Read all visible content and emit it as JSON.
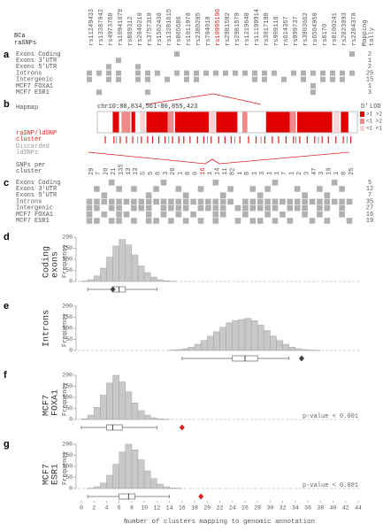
{
  "header": {
    "title_lines": [
      "BCa",
      "raSNPs"
    ],
    "tally_label_lines": [
      "Mapping",
      "tally"
    ],
    "rsids": [
      "rs11249433",
      "rs13387042",
      "rs4973768",
      "rs10941679",
      "rs889312",
      "rs2046210",
      "rs3757318",
      "rs1562430",
      "rs13281615",
      "rs865686",
      "rs1011970",
      "rs2380205",
      "rs704010",
      "rs10995190",
      "rs2981582",
      "rs2981579",
      "rs1219648",
      "rs11199914",
      "rs3817198",
      "rs909116",
      "rs614367",
      "rs999737",
      "rs3803662",
      "rs6504950",
      "rs8170",
      "rs8100241",
      "rs2823093",
      "rs2284378"
    ],
    "highlight_index": 13,
    "highlight_color": "#e02020"
  },
  "panel_labels": [
    "a",
    "b",
    "c",
    "d",
    "e",
    "f",
    "g"
  ],
  "panel_a": {
    "cell_color": "#b0b0b0",
    "rows": [
      {
        "label": "Exons Coding",
        "tally": 2,
        "cells": [
          0,
          0,
          0,
          0,
          0,
          0,
          0,
          0,
          0,
          1,
          0,
          0,
          0,
          0,
          0,
          0,
          0,
          0,
          0,
          0,
          0,
          0,
          0,
          0,
          0,
          0,
          0,
          1
        ]
      },
      {
        "label": "Exons 3'UTR",
        "tally": 1,
        "cells": [
          0,
          0,
          0,
          1,
          0,
          0,
          0,
          0,
          0,
          0,
          0,
          0,
          0,
          0,
          0,
          0,
          0,
          0,
          0,
          0,
          0,
          0,
          0,
          0,
          0,
          0,
          0,
          0
        ]
      },
      {
        "label": "Exons 5'UTR",
        "tally": 2,
        "cells": [
          0,
          0,
          1,
          0,
          0,
          1,
          0,
          0,
          0,
          0,
          0,
          0,
          0,
          0,
          0,
          0,
          0,
          0,
          0,
          0,
          0,
          0,
          0,
          0,
          0,
          0,
          0,
          0
        ]
      },
      {
        "label": "Introns",
        "tally": 25,
        "cells": [
          1,
          1,
          1,
          1,
          0,
          1,
          1,
          1,
          0,
          1,
          1,
          1,
          1,
          1,
          1,
          1,
          1,
          1,
          1,
          1,
          0,
          1,
          1,
          1,
          1,
          1,
          1,
          1
        ]
      },
      {
        "label": "Intergenic",
        "tally": 15,
        "cells": [
          1,
          0,
          1,
          1,
          0,
          1,
          1,
          0,
          1,
          0,
          1,
          1,
          0,
          0,
          0,
          0,
          0,
          1,
          1,
          0,
          1,
          0,
          1,
          0,
          1,
          1,
          1,
          0
        ]
      },
      {
        "label": "MCF7 FOXA1",
        "tally": 1,
        "cells": [
          0,
          0,
          0,
          0,
          0,
          0,
          0,
          0,
          0,
          0,
          0,
          0,
          0,
          0,
          0,
          0,
          0,
          0,
          0,
          0,
          0,
          0,
          0,
          1,
          0,
          0,
          0,
          0
        ]
      },
      {
        "label": "MCF7 ESR1",
        "tally": 3,
        "cells": [
          0,
          1,
          0,
          0,
          0,
          0,
          1,
          0,
          0,
          0,
          0,
          0,
          0,
          0,
          0,
          0,
          0,
          0,
          0,
          0,
          0,
          0,
          0,
          1,
          0,
          0,
          0,
          0
        ]
      }
    ]
  },
  "panel_b": {
    "label": "Hapmap",
    "region": "chr10:80,834,561-80,855,423",
    "range": [
      80834561,
      80855423
    ],
    "cluster_label_lines": [
      "raSNP/ldSNP",
      "cluster"
    ],
    "discarded_label_lines": [
      "Discarded",
      "ldSNPs"
    ],
    "cluster_color": "#e02020",
    "discarded_color": "#999999",
    "legend_header": [
      "D'",
      "LOD"
    ],
    "legend": [
      {
        "label": ">1 >2",
        "color": "#e00000"
      },
      {
        "label": "<1 >2",
        "color": "#f08a8a"
      },
      {
        "label": "<1 <1",
        "color": "#fad4d4"
      }
    ],
    "ld_blocks": [
      [
        80835800,
        80836300,
        0
      ],
      [
        80836500,
        80837200,
        1
      ],
      [
        80837300,
        80837600,
        0
      ],
      [
        80838000,
        80838400,
        2
      ],
      [
        80838500,
        80840200,
        0
      ],
      [
        80840200,
        80840700,
        1
      ],
      [
        80840800,
        80843500,
        0
      ],
      [
        80843500,
        80844000,
        2
      ],
      [
        80844100,
        80845800,
        0
      ],
      [
        80846200,
        80846600,
        1
      ],
      [
        80848100,
        80850000,
        0
      ],
      [
        80850000,
        80850500,
        1
      ],
      [
        80850600,
        80853400,
        0
      ],
      [
        80853500,
        80854000,
        2
      ],
      [
        80854100,
        80854700,
        0
      ]
    ],
    "clusters": [
      80835200,
      80835900,
      80836400,
      80836900,
      80837400,
      80838100,
      80838600,
      80839000,
      80839500,
      80840000,
      80840600,
      80841100,
      80841500,
      80842000,
      80842600,
      80843100,
      80843700,
      80844300,
      80844800,
      80845300,
      80846000,
      80846700,
      80847300,
      80848000,
      80848600,
      80849100,
      80849700,
      80850300,
      80850800,
      80851400,
      80852000,
      80852600,
      80853100,
      80853700,
      80854300,
      80854900
    ],
    "discarded": [
      80836100,
      80837800,
      80840300,
      80843400,
      80845600,
      80847700,
      80850500,
      80852300,
      80854600
    ]
  },
  "panel_c": {
    "snps_label_lines": [
      "SNPs per",
      "cluster"
    ],
    "highlight_index": 15,
    "snps_per_cluster": [
      29,
      7,
      26,
      21,
      135,
      13,
      13,
      5,
      5,
      8,
      3,
      28,
      1,
      8,
      6,
      16,
      1,
      14,
      11,
      82,
      1,
      8,
      1,
      3,
      1,
      1,
      7,
      1,
      2,
      3,
      47,
      3,
      10,
      1,
      8,
      25
    ],
    "rows": [
      {
        "label": "Exons Coding",
        "tally": 5,
        "cells": [
          0,
          0,
          0,
          1,
          0,
          0,
          0,
          0,
          0,
          0,
          1,
          0,
          0,
          0,
          0,
          0,
          0,
          1,
          0,
          0,
          0,
          0,
          0,
          0,
          0,
          1,
          0,
          0,
          0,
          0,
          0,
          0,
          0,
          1,
          0,
          0
        ]
      },
      {
        "label": "Exons 3'UTR",
        "tally": 12,
        "cells": [
          0,
          1,
          0,
          0,
          1,
          0,
          1,
          0,
          0,
          1,
          0,
          0,
          1,
          0,
          0,
          1,
          0,
          0,
          0,
          1,
          0,
          0,
          1,
          0,
          1,
          0,
          0,
          0,
          1,
          0,
          0,
          1,
          0,
          0,
          1,
          0
        ]
      },
      {
        "label": "Exons 5'UTR",
        "tally": 7,
        "cells": [
          0,
          0,
          1,
          0,
          0,
          0,
          0,
          0,
          1,
          0,
          0,
          0,
          0,
          1,
          0,
          0,
          0,
          0,
          1,
          0,
          0,
          0,
          0,
          1,
          0,
          0,
          0,
          0,
          0,
          1,
          0,
          0,
          1,
          0,
          0,
          0
        ]
      },
      {
        "label": "Introns",
        "tally": 35,
        "cells": [
          1,
          1,
          1,
          1,
          1,
          1,
          1,
          1,
          1,
          1,
          1,
          1,
          1,
          1,
          1,
          1,
          1,
          1,
          1,
          1,
          0,
          1,
          1,
          1,
          1,
          1,
          1,
          1,
          1,
          1,
          1,
          1,
          1,
          1,
          1,
          1
        ]
      },
      {
        "label": "Intergenic",
        "tally": 27,
        "cells": [
          1,
          1,
          0,
          1,
          1,
          0,
          1,
          1,
          1,
          0,
          1,
          1,
          1,
          1,
          0,
          1,
          1,
          1,
          1,
          0,
          1,
          1,
          1,
          1,
          1,
          1,
          0,
          1,
          1,
          1,
          0,
          1,
          1,
          0,
          1,
          0
        ]
      },
      {
        "label": "MCF7 FOXA1",
        "tally": 16,
        "cells": [
          1,
          0,
          1,
          0,
          1,
          1,
          0,
          0,
          1,
          0,
          1,
          0,
          1,
          0,
          1,
          0,
          0,
          1,
          1,
          0,
          0,
          1,
          0,
          0,
          1,
          0,
          1,
          0,
          0,
          1,
          0,
          1,
          0,
          0,
          1,
          0
        ]
      },
      {
        "label": "MCF7 ESR1",
        "tally": 19,
        "cells": [
          1,
          1,
          0,
          1,
          1,
          0,
          1,
          0,
          1,
          1,
          0,
          1,
          0,
          1,
          0,
          1,
          0,
          1,
          0,
          0,
          1,
          0,
          1,
          1,
          0,
          1,
          0,
          1,
          0,
          0,
          1,
          0,
          1,
          0,
          0,
          1
        ]
      }
    ]
  },
  "chart_data": [
    {
      "type": "histogram",
      "label_lines": [
        "Coding",
        "exons"
      ],
      "ylabel": "Frequency",
      "color": "#c8c8c8",
      "xlim": [
        0,
        44
      ],
      "ylim": [
        0,
        200
      ],
      "yticks": [
        0,
        50,
        100,
        150,
        200
      ],
      "bins": [
        0,
        1,
        2,
        3,
        4,
        5,
        6,
        7,
        8,
        9,
        10,
        11,
        12,
        13,
        14,
        15,
        16,
        17,
        18,
        19,
        20,
        21,
        22,
        23,
        24,
        25,
        26,
        27,
        28,
        29,
        30,
        31,
        32,
        33,
        34,
        35,
        36,
        37,
        38,
        39,
        40,
        41,
        42,
        43,
        44
      ],
      "counts": [
        2,
        8,
        25,
        60,
        110,
        160,
        190,
        165,
        120,
        70,
        40,
        20,
        8,
        3,
        1,
        0,
        0,
        0,
        0,
        0,
        0,
        0,
        0,
        0,
        0,
        0,
        0,
        0,
        0,
        0,
        0,
        0,
        0,
        0,
        0,
        0,
        0,
        0,
        0,
        0,
        0,
        0,
        0,
        0
      ],
      "box": {
        "whisker_low": 1,
        "q1": 5,
        "median": 6,
        "q3": 7,
        "whisker_high": 12
      },
      "observed": 5,
      "observed_color": "#444444"
    },
    {
      "type": "histogram",
      "label_lines": [
        "Introns"
      ],
      "ylabel": "Frequency",
      "color": "#c8c8c8",
      "xlim": [
        0,
        44
      ],
      "ylim": [
        0,
        200
      ],
      "yticks": [
        0,
        50,
        100,
        150,
        200
      ],
      "bins": [
        0,
        1,
        2,
        3,
        4,
        5,
        6,
        7,
        8,
        9,
        10,
        11,
        12,
        13,
        14,
        15,
        16,
        17,
        18,
        19,
        20,
        21,
        22,
        23,
        24,
        25,
        26,
        27,
        28,
        29,
        30,
        31,
        32,
        33,
        34,
        35,
        36,
        37,
        38,
        39,
        40,
        41,
        42,
        43,
        44
      ],
      "counts": [
        0,
        0,
        0,
        0,
        0,
        0,
        0,
        0,
        0,
        0,
        0,
        0,
        0,
        0,
        2,
        4,
        8,
        15,
        28,
        45,
        65,
        85,
        105,
        125,
        135,
        140,
        145,
        135,
        115,
        90,
        65,
        45,
        28,
        15,
        8,
        4,
        2,
        1,
        0,
        0,
        0,
        0,
        0,
        0
      ],
      "box": {
        "whisker_low": 16,
        "q1": 24,
        "median": 26,
        "q3": 28,
        "whisker_high": 33
      },
      "observed": 35,
      "observed_color": "#444444"
    },
    {
      "type": "histogram",
      "label_lines": [
        "MCF7",
        "FOXA1"
      ],
      "ylabel": "Frequency",
      "color": "#c8c8c8",
      "xlim": [
        0,
        44
      ],
      "ylim": [
        0,
        200
      ],
      "yticks": [
        0,
        50,
        100,
        150,
        200
      ],
      "bins": [
        0,
        1,
        2,
        3,
        4,
        5,
        6,
        7,
        8,
        9,
        10,
        11,
        12,
        13,
        14,
        15,
        16,
        17,
        18,
        19,
        20,
        21,
        22,
        23,
        24,
        25,
        26,
        27,
        28,
        29,
        30,
        31,
        32,
        33,
        34,
        35,
        36,
        37,
        38,
        39,
        40,
        41,
        42,
        43,
        44
      ],
      "counts": [
        3,
        20,
        55,
        110,
        165,
        200,
        170,
        125,
        75,
        40,
        20,
        8,
        3,
        1,
        0,
        0,
        0,
        0,
        0,
        0,
        0,
        0,
        0,
        0,
        0,
        0,
        0,
        0,
        0,
        0,
        0,
        0,
        0,
        0,
        0,
        0,
        0,
        0,
        0,
        0,
        0,
        0,
        0,
        0
      ],
      "box": {
        "whisker_low": 0,
        "q1": 4,
        "median": 5,
        "q3": 6.5,
        "whisker_high": 12
      },
      "observed": 16,
      "observed_color": "#e02020",
      "annotation": "p-value < 0.001"
    },
    {
      "type": "histogram",
      "label_lines": [
        "MCF7",
        "ESR1"
      ],
      "ylabel": "Frequency",
      "color": "#c8c8c8",
      "xlim": [
        0,
        44
      ],
      "ylim": [
        0,
        200
      ],
      "yticks": [
        0,
        50,
        100,
        150,
        200
      ],
      "bins": [
        0,
        1,
        2,
        3,
        4,
        5,
        6,
        7,
        8,
        9,
        10,
        11,
        12,
        13,
        14,
        15,
        16,
        17,
        18,
        19,
        20,
        21,
        22,
        23,
        24,
        25,
        26,
        27,
        28,
        29,
        30,
        31,
        32,
        33,
        34,
        35,
        36,
        37,
        38,
        39,
        40,
        41,
        42,
        43,
        44
      ],
      "counts": [
        0,
        2,
        8,
        25,
        60,
        110,
        165,
        200,
        175,
        130,
        80,
        45,
        20,
        8,
        3,
        1,
        0,
        0,
        0,
        0,
        0,
        0,
        0,
        0,
        0,
        0,
        0,
        0,
        0,
        0,
        0,
        0,
        0,
        0,
        0,
        0,
        0,
        0,
        0,
        0,
        0,
        0,
        0,
        0
      ],
      "box": {
        "whisker_low": 1,
        "q1": 6,
        "median": 7.5,
        "q3": 8.5,
        "whisker_high": 14
      },
      "observed": 19,
      "observed_color": "#e02020",
      "annotation": "p-value < 0.001",
      "xticks": [
        0,
        2,
        4,
        6,
        8,
        10,
        12,
        14,
        16,
        18,
        20,
        22,
        24,
        26,
        28,
        30,
        32,
        34,
        36,
        38,
        40,
        42,
        44
      ],
      "xlabel": "Number of clusters mapping to genomic annotation"
    }
  ]
}
